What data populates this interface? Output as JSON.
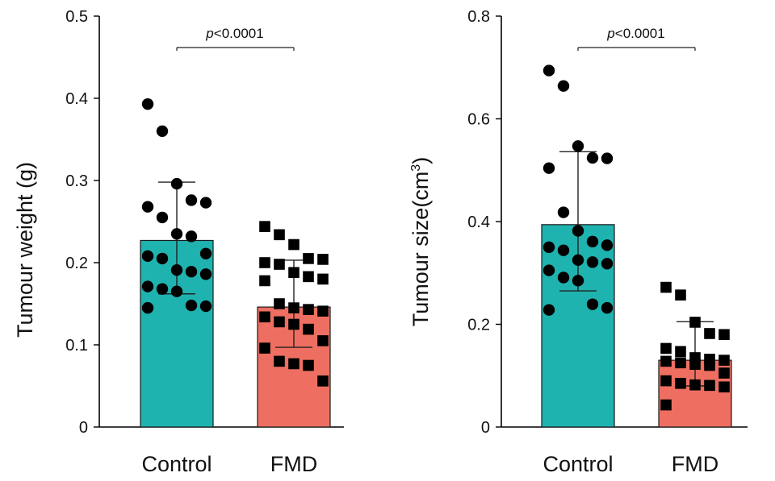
{
  "colors": {
    "control": "#1fb3b0",
    "fmd": "#ee6f61",
    "points": "#000000"
  },
  "chart_data": [
    {
      "type": "bar",
      "ylabel": "Tumour weight (g)",
      "ylim": [
        0,
        0.5
      ],
      "yticks": [
        0,
        0.1,
        0.2,
        0.3,
        0.4,
        0.5
      ],
      "ytick_labels": [
        "0",
        "0.1",
        "0.2",
        "0.3",
        "0.4",
        "0.5"
      ],
      "categories": [
        "Control",
        "FMD"
      ],
      "values": [
        0.227,
        0.146
      ],
      "errors": [
        {
          "low": 0.162,
          "high": 0.298
        },
        {
          "low": 0.097,
          "high": 0.203
        }
      ],
      "annotation": {
        "p_text": "p",
        "text": "<0.0001",
        "between": [
          "Control",
          "FMD"
        ]
      },
      "points": [
        [
          0.393,
          0.36,
          0.296,
          0.276,
          0.273,
          0.268,
          0.255,
          0.235,
          0.232,
          0.211,
          0.208,
          0.205,
          0.191,
          0.189,
          0.186,
          0.171,
          0.168,
          0.165,
          0.148,
          0.147,
          0.145
        ],
        [
          0.244,
          0.234,
          0.222,
          0.205,
          0.204,
          0.2,
          0.198,
          0.188,
          0.183,
          0.18,
          0.178,
          0.15,
          0.145,
          0.143,
          0.141,
          0.134,
          0.128,
          0.125,
          0.119,
          0.105,
          0.096,
          0.08,
          0.077,
          0.075,
          0.056
        ]
      ],
      "point_shape": [
        "circle",
        "square"
      ]
    },
    {
      "type": "bar",
      "ylabel": "Tumour size(cm",
      "ylabel_sup": "3",
      "ylabel_end": ")",
      "ylim": [
        0,
        0.8
      ],
      "yticks": [
        0,
        0.2,
        0.4,
        0.6,
        0.8
      ],
      "ytick_labels": [
        "0",
        "0.2",
        "0.4",
        "0.6",
        "0.8"
      ],
      "categories": [
        "Control",
        "FMD"
      ],
      "values": [
        0.394,
        0.13
      ],
      "errors": [
        {
          "low": 0.265,
          "high": 0.536
        },
        {
          "low": 0.08,
          "high": 0.205
        }
      ],
      "annotation": {
        "p_text": "p",
        "text": "<0.0001",
        "between": [
          "Control",
          "FMD"
        ]
      },
      "points": [
        [
          0.694,
          0.664,
          0.547,
          0.524,
          0.523,
          0.504,
          0.418,
          0.382,
          0.361,
          0.354,
          0.35,
          0.344,
          0.325,
          0.321,
          0.318,
          0.305,
          0.291,
          0.285,
          0.239,
          0.232,
          0.228
        ],
        [
          0.272,
          0.257,
          0.204,
          0.182,
          0.18,
          0.153,
          0.147,
          0.135,
          0.132,
          0.13,
          0.128,
          0.125,
          0.122,
          0.12,
          0.105,
          0.09,
          0.085,
          0.082,
          0.081,
          0.078,
          0.043
        ]
      ],
      "point_shape": [
        "circle",
        "square"
      ]
    }
  ]
}
